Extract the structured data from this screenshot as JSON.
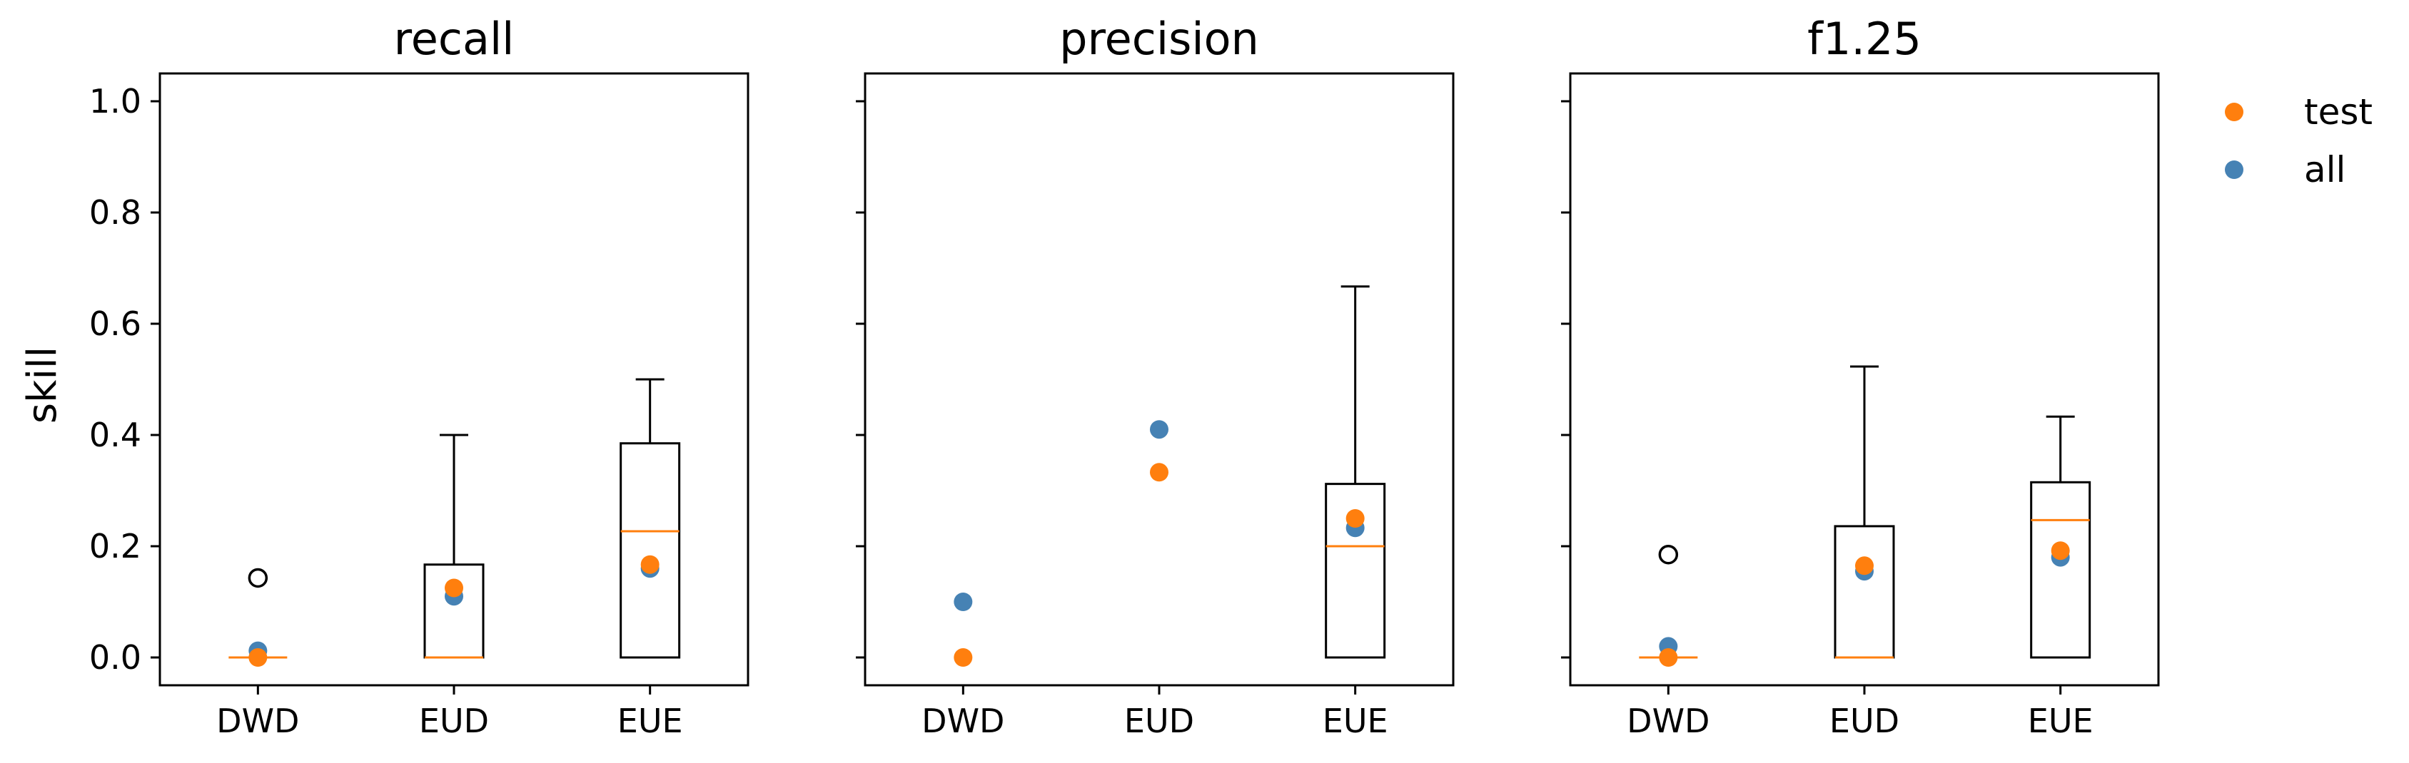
{
  "colors": {
    "test": "#ff7f0e",
    "all": "#4682b4",
    "median": "#ff7f0e",
    "axes": "#000000"
  },
  "legend": {
    "position": "top-right-outside",
    "items": [
      {
        "label": "test",
        "color": "#ff7f0e"
      },
      {
        "label": "all",
        "color": "#4682b4"
      }
    ]
  },
  "chart_data": {
    "type": "box",
    "ylabel": "skill",
    "ylim": [
      -0.05,
      1.05
    ],
    "yticks": [
      0.0,
      0.2,
      0.4,
      0.6,
      0.8,
      1.0
    ],
    "ytick_labels": [
      "0.0",
      "0.2",
      "0.4",
      "0.6",
      "0.8",
      "1.0"
    ],
    "shared_y": true,
    "panels": [
      {
        "title": "recall",
        "categories": [
          "DWD",
          "EUD",
          "EUE"
        ],
        "boxes": [
          {
            "q1": 0.0,
            "median": 0.0,
            "q3": 0.0,
            "whisker_low": 0.0,
            "whisker_high": 0.0,
            "outliers": [
              0.143
            ]
          },
          {
            "q1": 0.0,
            "median": 0.0,
            "q3": 0.167,
            "whisker_low": 0.0,
            "whisker_high": 0.4,
            "outliers": []
          },
          {
            "q1": 0.0,
            "median": 0.227,
            "q3": 0.385,
            "whisker_low": 0.0,
            "whisker_high": 0.5,
            "outliers": []
          }
        ],
        "series": [
          {
            "name": "all",
            "values": [
              0.012,
              0.11,
              0.16
            ]
          },
          {
            "name": "test",
            "values": [
              0.0,
              0.125,
              0.167
            ]
          }
        ]
      },
      {
        "title": "precision",
        "categories": [
          "DWD",
          "EUD",
          "EUE"
        ],
        "boxes": [
          null,
          null,
          {
            "q1": 0.0,
            "median": 0.2,
            "q3": 0.312,
            "whisker_low": 0.0,
            "whisker_high": 0.667,
            "outliers": []
          }
        ],
        "series": [
          {
            "name": "all",
            "values": [
              0.1,
              0.41,
              0.233
            ]
          },
          {
            "name": "test",
            "values": [
              0.0,
              0.333,
              0.25
            ]
          }
        ]
      },
      {
        "title": "f1.25",
        "categories": [
          "DWD",
          "EUD",
          "EUE"
        ],
        "boxes": [
          {
            "q1": 0.0,
            "median": 0.0,
            "q3": 0.0,
            "whisker_low": 0.0,
            "whisker_high": 0.0,
            "outliers": [
              0.185
            ]
          },
          {
            "q1": 0.0,
            "median": 0.0,
            "q3": 0.236,
            "whisker_low": 0.0,
            "whisker_high": 0.523,
            "outliers": []
          },
          {
            "q1": 0.0,
            "median": 0.247,
            "q3": 0.315,
            "whisker_low": 0.0,
            "whisker_high": 0.433,
            "outliers": []
          }
        ],
        "series": [
          {
            "name": "all",
            "values": [
              0.02,
              0.155,
              0.18
            ]
          },
          {
            "name": "test",
            "values": [
              0.0,
              0.165,
              0.192
            ]
          }
        ]
      }
    ]
  }
}
